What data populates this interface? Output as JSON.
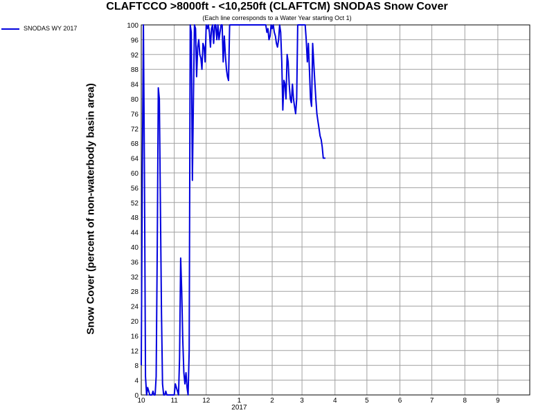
{
  "chart_data": {
    "type": "line",
    "title": "CLAFTCCO >8000ft - <10,250ft (CLAFTCM) SNODAS Snow Cover",
    "subtitle": "(Each line corresponds to a Water Year starting Oct 1)",
    "ylabel": "Snow Cover (percent of non-waterbody basin area)",
    "xlabel": "",
    "ylim": [
      0,
      100
    ],
    "yticks": [
      0,
      4,
      8,
      12,
      16,
      20,
      24,
      28,
      32,
      36,
      40,
      44,
      48,
      52,
      56,
      60,
      64,
      68,
      72,
      76,
      80,
      84,
      88,
      92,
      96,
      100
    ],
    "xlim": [
      0,
      365
    ],
    "xticks": [
      {
        "day": 0,
        "label": "10"
      },
      {
        "day": 31,
        "label": "11"
      },
      {
        "day": 61,
        "label": "12"
      },
      {
        "day": 92,
        "label": "1"
      },
      {
        "day": 123,
        "label": "2"
      },
      {
        "day": 151,
        "label": "3"
      },
      {
        "day": 182,
        "label": "4"
      },
      {
        "day": 212,
        "label": "5"
      },
      {
        "day": 243,
        "label": "6"
      },
      {
        "day": 273,
        "label": "7"
      },
      {
        "day": 304,
        "label": "8"
      },
      {
        "day": 335,
        "label": "9"
      }
    ],
    "year_label": "2017",
    "grid": true,
    "legend": "top-left",
    "series": [
      {
        "name": "SNODAS WY 2017",
        "color": "#0000dd",
        "x": [
          0,
          1,
          2,
          3,
          4,
          5,
          6,
          7,
          8,
          9,
          10,
          11,
          12,
          13,
          14,
          15,
          16,
          17,
          18,
          19,
          20,
          21,
          22,
          23,
          24,
          25,
          26,
          27,
          28,
          29,
          30,
          31,
          32,
          33,
          34,
          35,
          36,
          37,
          38,
          39,
          40,
          41,
          42,
          43,
          44,
          45,
          46,
          47,
          48,
          49,
          50,
          51,
          52,
          53,
          54,
          55,
          56,
          57,
          58,
          59,
          60,
          61,
          62,
          63,
          64,
          65,
          66,
          67,
          68,
          69,
          70,
          71,
          72,
          73,
          74,
          75,
          76,
          77,
          78,
          79,
          80,
          81,
          82,
          83,
          84,
          85,
          86,
          87,
          88,
          89,
          90,
          91,
          92,
          93,
          94,
          95,
          96,
          97,
          98,
          99,
          100,
          101,
          102,
          103,
          104,
          105,
          106,
          107,
          108,
          109,
          110,
          111,
          112,
          113,
          114,
          115,
          116,
          117,
          118,
          119,
          120,
          121,
          122,
          123,
          124,
          125,
          126,
          127,
          128,
          129,
          130,
          131,
          132,
          133,
          134,
          135,
          136,
          137,
          138,
          139,
          140,
          141,
          142,
          143,
          144,
          145,
          146,
          147,
          148,
          149,
          150,
          151,
          152,
          153,
          154,
          155,
          156,
          157,
          158,
          159,
          160,
          161,
          162,
          163,
          164,
          165,
          166,
          167,
          168,
          169,
          170,
          171,
          172,
          173
        ],
        "y": [
          8,
          60,
          100,
          60,
          5,
          0,
          2,
          1,
          0,
          0,
          0,
          1,
          0,
          0,
          5,
          40,
          83,
          80,
          50,
          22,
          3,
          0,
          0,
          1,
          0,
          0,
          0,
          0,
          0,
          0,
          0,
          0,
          3,
          2,
          1,
          0,
          10,
          37,
          28,
          15,
          6,
          3,
          6,
          2,
          0,
          12,
          100,
          98,
          58,
          80,
          100,
          99,
          86,
          94,
          96,
          92,
          91,
          88,
          95,
          94,
          90,
          100,
          99,
          100,
          98,
          94,
          99,
          100,
          95,
          100,
          100,
          96,
          100,
          96,
          98,
          100,
          100,
          90,
          97,
          92,
          88,
          86,
          85,
          100,
          100,
          100,
          100,
          100,
          100,
          100,
          100,
          100,
          100,
          100,
          100,
          100,
          100,
          100,
          100,
          100,
          100,
          100,
          100,
          100,
          100,
          100,
          100,
          100,
          100,
          100,
          100,
          100,
          100,
          100,
          100,
          100,
          100,
          100,
          98,
          99,
          96,
          97,
          100,
          99,
          100,
          98,
          97,
          95,
          94,
          96,
          100,
          98,
          90,
          77,
          85,
          84,
          80,
          92,
          90,
          84,
          80,
          79,
          84,
          80,
          78,
          76,
          80,
          100,
          100,
          100,
          100,
          100,
          100,
          100,
          100,
          96,
          90,
          95,
          88,
          80,
          78,
          95,
          90,
          85,
          80,
          76,
          74,
          72,
          70,
          69,
          67,
          64,
          64,
          64
        ]
      }
    ]
  }
}
